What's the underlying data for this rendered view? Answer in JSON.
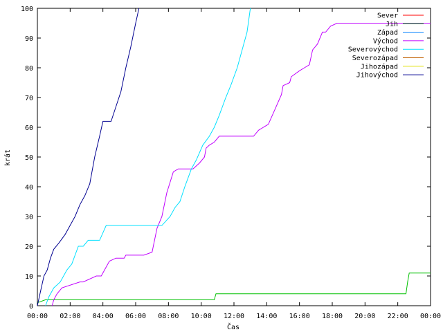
{
  "chart_data": {
    "type": "line",
    "title": "",
    "xlabel": "Čas",
    "ylabel": "krát",
    "xlim": [
      0,
      24
    ],
    "ylim": [
      0,
      100
    ],
    "grid": false,
    "legend_position": "top-right",
    "x_ticks": [
      {
        "value": 0,
        "label": "00:00"
      },
      {
        "value": 2,
        "label": "02:00"
      },
      {
        "value": 4,
        "label": "04:00"
      },
      {
        "value": 6,
        "label": "06:00"
      },
      {
        "value": 8,
        "label": "08:00"
      },
      {
        "value": 10,
        "label": "10:00"
      },
      {
        "value": 12,
        "label": "12:00"
      },
      {
        "value": 14,
        "label": "14:00"
      },
      {
        "value": 16,
        "label": "16:00"
      },
      {
        "value": 18,
        "label": "18:00"
      },
      {
        "value": 20,
        "label": "20:00"
      },
      {
        "value": 22,
        "label": "22:00"
      },
      {
        "value": 24,
        "label": "00:00"
      }
    ],
    "y_ticks": [
      0,
      10,
      20,
      30,
      40,
      50,
      60,
      70,
      80,
      90,
      100
    ],
    "series": [
      {
        "name": "Sever",
        "color": "#ff0000",
        "x": [],
        "y": []
      },
      {
        "name": "Jih",
        "color": "#00c000",
        "x": [
          0,
          0.5,
          10.8,
          10.9,
          22.5,
          22.6,
          22.7,
          24
        ],
        "y": [
          1,
          2,
          2,
          4,
          4,
          8,
          11,
          11
        ]
      },
      {
        "name": "Západ",
        "color": "#0080ff",
        "x": [],
        "y": []
      },
      {
        "name": "Východ",
        "color": "#c000ff",
        "x": [
          0.9,
          1.0,
          1.2,
          1.5,
          2.6,
          2.8,
          3.6,
          3.9,
          4.1,
          4.4,
          4.8,
          5.3,
          5.4,
          5.7,
          5.9,
          6.1,
          6.5,
          7.0,
          7.3,
          7.6,
          7.9,
          8.3,
          8.6,
          8.8,
          9.1,
          9.4,
          9.5,
          9.9,
          10.2,
          10.3,
          10.5,
          10.8,
          11.1,
          11.5,
          11.8,
          12.2,
          12.6,
          12.9,
          13.2,
          13.5,
          13.8,
          14.1,
          14.5,
          14.9,
          15.0,
          15.4,
          15.5,
          16.0,
          16.3,
          16.6,
          16.8,
          17.1,
          17.4,
          17.6,
          17.9,
          18.3,
          19.0,
          20.0,
          21.0,
          22.0,
          24.0
        ],
        "y": [
          0,
          2,
          4,
          6,
          8,
          8,
          10,
          10,
          12,
          15,
          16,
          16,
          17,
          17,
          17,
          17,
          17,
          18,
          26,
          30,
          38,
          45,
          46,
          46,
          46,
          46,
          46,
          48,
          50,
          53,
          54,
          55,
          57,
          57,
          57,
          57,
          57,
          57,
          57,
          59,
          60,
          61,
          66,
          71,
          74,
          75,
          77,
          79,
          80,
          81,
          86,
          88,
          92,
          92,
          94,
          95,
          95,
          95,
          95,
          95,
          95
        ]
      },
      {
        "name": "Severovýchod",
        "color": "#00e0ff",
        "x": [
          0.5,
          0.7,
          1.0,
          1.4,
          1.8,
          2.1,
          2.5,
          2.8,
          3.1,
          3.4,
          3.8,
          4.2,
          4.6,
          5.2,
          5.8,
          6.5,
          7.2,
          7.6,
          8.1,
          8.4,
          8.7,
          9.0,
          9.4,
          9.7,
          10.1,
          10.5,
          10.8,
          11.1,
          11.5,
          11.8,
          12.2,
          12.5,
          12.8,
          13.0
        ],
        "y": [
          0,
          3,
          6,
          8,
          12,
          14,
          20,
          20,
          22,
          22,
          22,
          27,
          27,
          27,
          27,
          27,
          27,
          27,
          30,
          33,
          35,
          40,
          46,
          49,
          54,
          57,
          60,
          64,
          70,
          74,
          80,
          86,
          92,
          100
        ]
      },
      {
        "name": "Severozápad",
        "color": "#c06000",
        "x": [],
        "y": []
      },
      {
        "name": "Jihozápad",
        "color": "#e0e000",
        "x": [],
        "y": []
      },
      {
        "name": "Jihovýchod",
        "color": "#000090",
        "x": [
          0,
          0.2,
          0.4,
          0.6,
          0.8,
          1.0,
          1.3,
          1.7,
          2.0,
          2.3,
          2.6,
          2.9,
          3.2,
          3.5,
          3.8,
          4.0,
          4.5,
          4.8,
          5.1,
          5.4,
          5.7,
          6.0,
          6.2
        ],
        "y": [
          0,
          5,
          10,
          12,
          16,
          19,
          21,
          24,
          27,
          30,
          34,
          37,
          41,
          50,
          57,
          62,
          62,
          67,
          72,
          80,
          87,
          95,
          100
        ]
      }
    ]
  }
}
